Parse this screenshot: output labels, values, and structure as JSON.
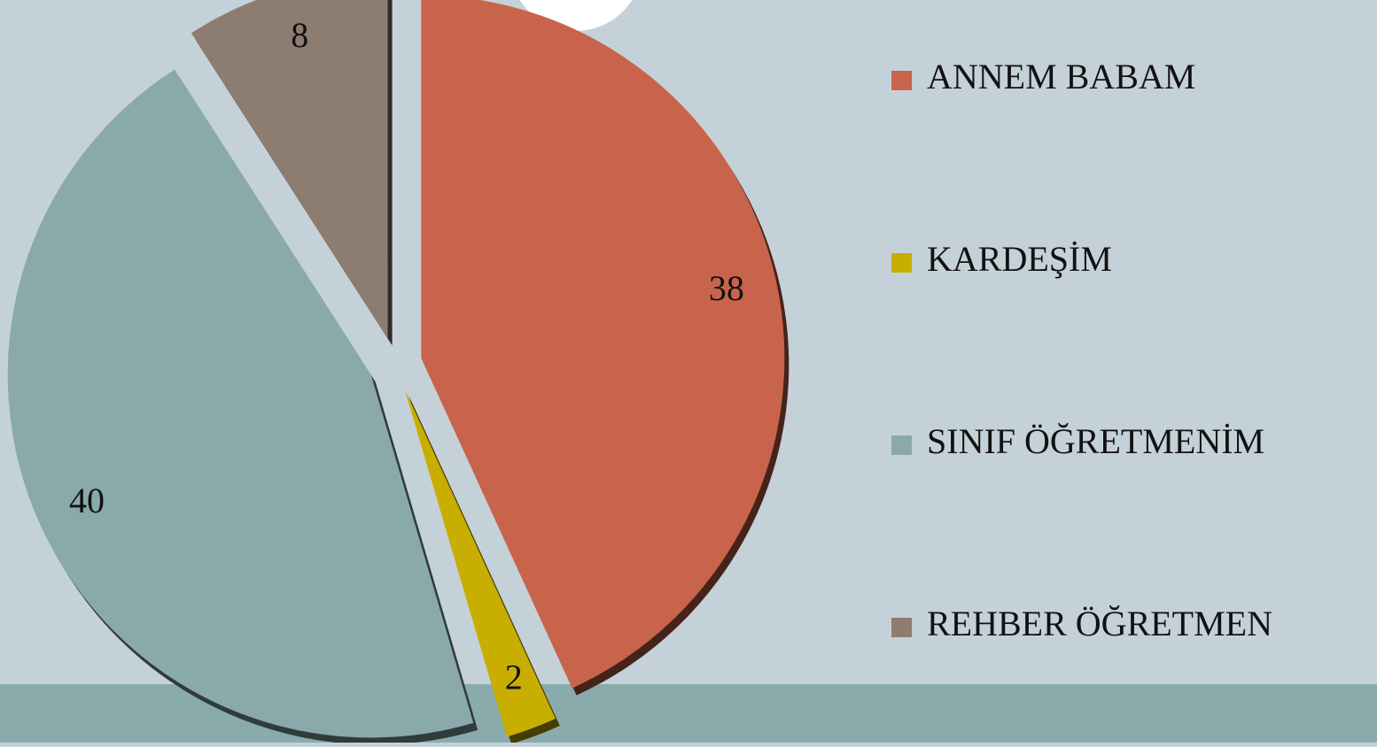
{
  "chart_data": {
    "type": "pie",
    "categories": [
      "ANNEM BABAM",
      "KARDEŞİM",
      "SINIF ÖĞRETMENİM",
      "REHBER ÖĞRETMEN"
    ],
    "values": [
      38,
      2,
      40,
      8
    ],
    "colors": [
      "#c8644b",
      "#c8ae00",
      "#8aa9aa",
      "#8d7c70"
    ],
    "legend": "right"
  }
}
